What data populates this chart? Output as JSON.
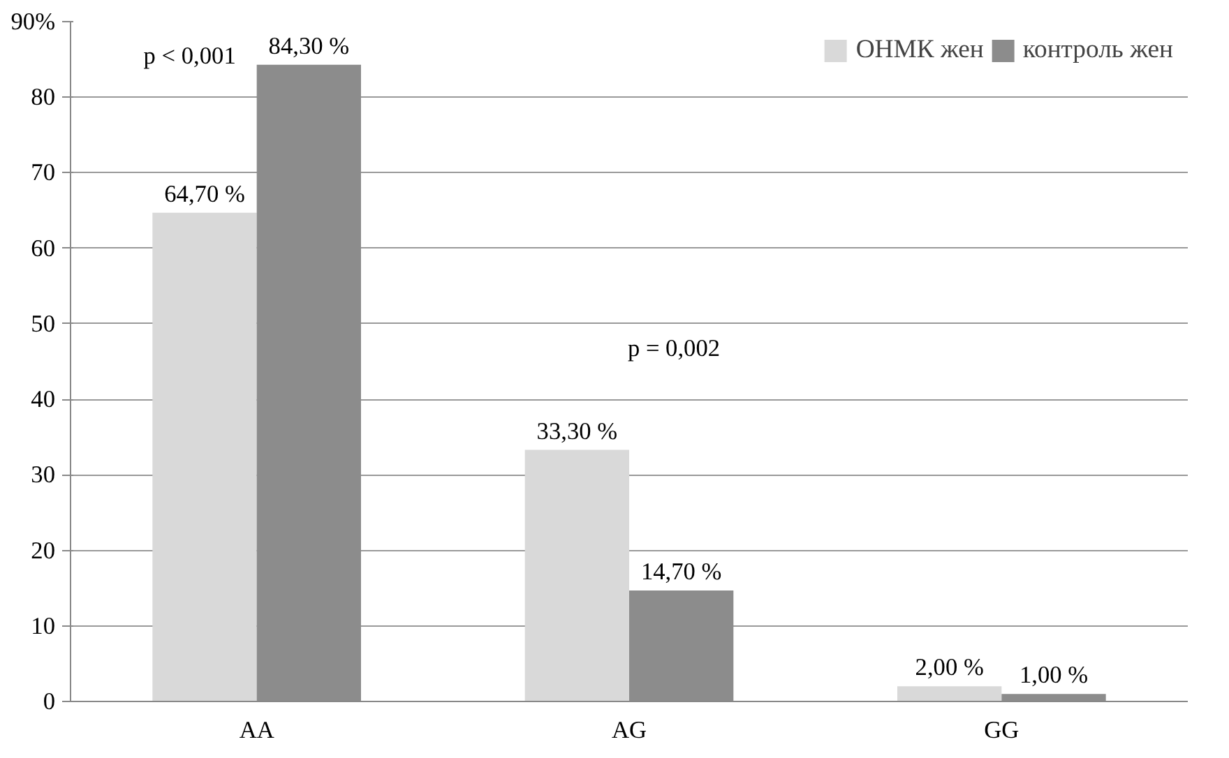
{
  "chart_data": {
    "type": "bar",
    "categories": [
      "AA",
      "AG",
      "GG"
    ],
    "series": [
      {
        "name": "ОНМК жен",
        "color": "#d9d9d9",
        "values": [
          64.7,
          33.3,
          2.0
        ],
        "value_labels": [
          "64,70 %",
          "33,30 %",
          "2,00 %"
        ]
      },
      {
        "name": "контроль жен",
        "color": "#8c8c8c",
        "values": [
          84.3,
          14.7,
          1.0
        ],
        "value_labels": [
          "84,30 %",
          "14,70 %",
          "1,00 %"
        ]
      }
    ],
    "ylim": [
      0,
      90
    ],
    "yticks": [
      0,
      10,
      20,
      30,
      40,
      50,
      60,
      70,
      80,
      {
        "value": 90,
        "label": "90%"
      }
    ],
    "grid": "y",
    "legend": "top right",
    "annotations": [
      "p < 0,001",
      "p = 0,002"
    ]
  }
}
